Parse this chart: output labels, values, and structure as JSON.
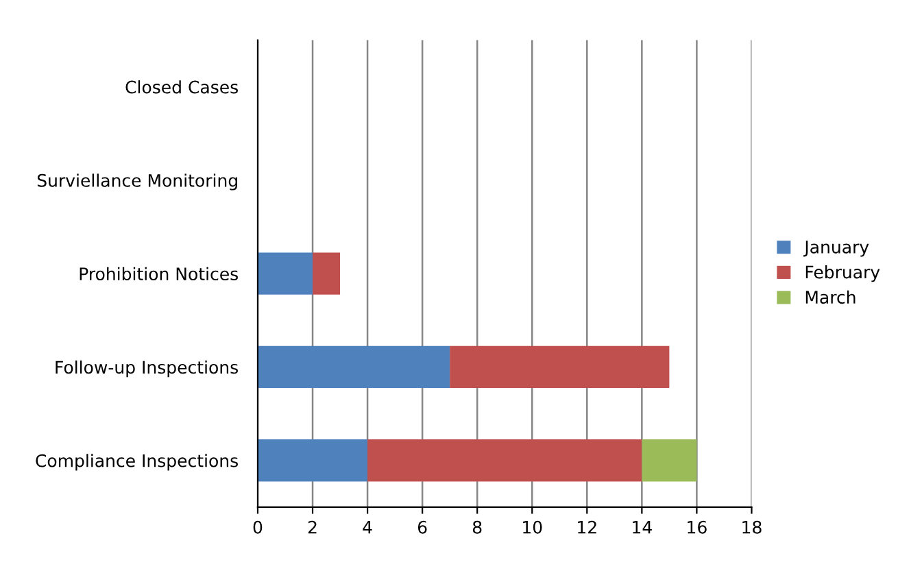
{
  "chart_data": {
    "type": "bar",
    "orientation": "horizontal",
    "stacked": true,
    "categories": [
      "Closed Cases",
      "Surviellance Monitoring",
      "Prohibition Notices",
      "Follow-up Inspections",
      "Compliance Inspections"
    ],
    "series": [
      {
        "name": "January",
        "color": "#4f81bd",
        "values": [
          0,
          0,
          2,
          7,
          4
        ]
      },
      {
        "name": "February",
        "color": "#c0504d",
        "values": [
          0,
          0,
          1,
          8,
          10
        ]
      },
      {
        "name": "March",
        "color": "#9bbb59",
        "values": [
          0,
          0,
          0,
          0,
          2
        ]
      }
    ],
    "xlim": [
      0,
      18
    ],
    "xticks": [
      0,
      2,
      4,
      6,
      8,
      10,
      12,
      14,
      16,
      18
    ],
    "grid": "x",
    "legend": "right"
  }
}
